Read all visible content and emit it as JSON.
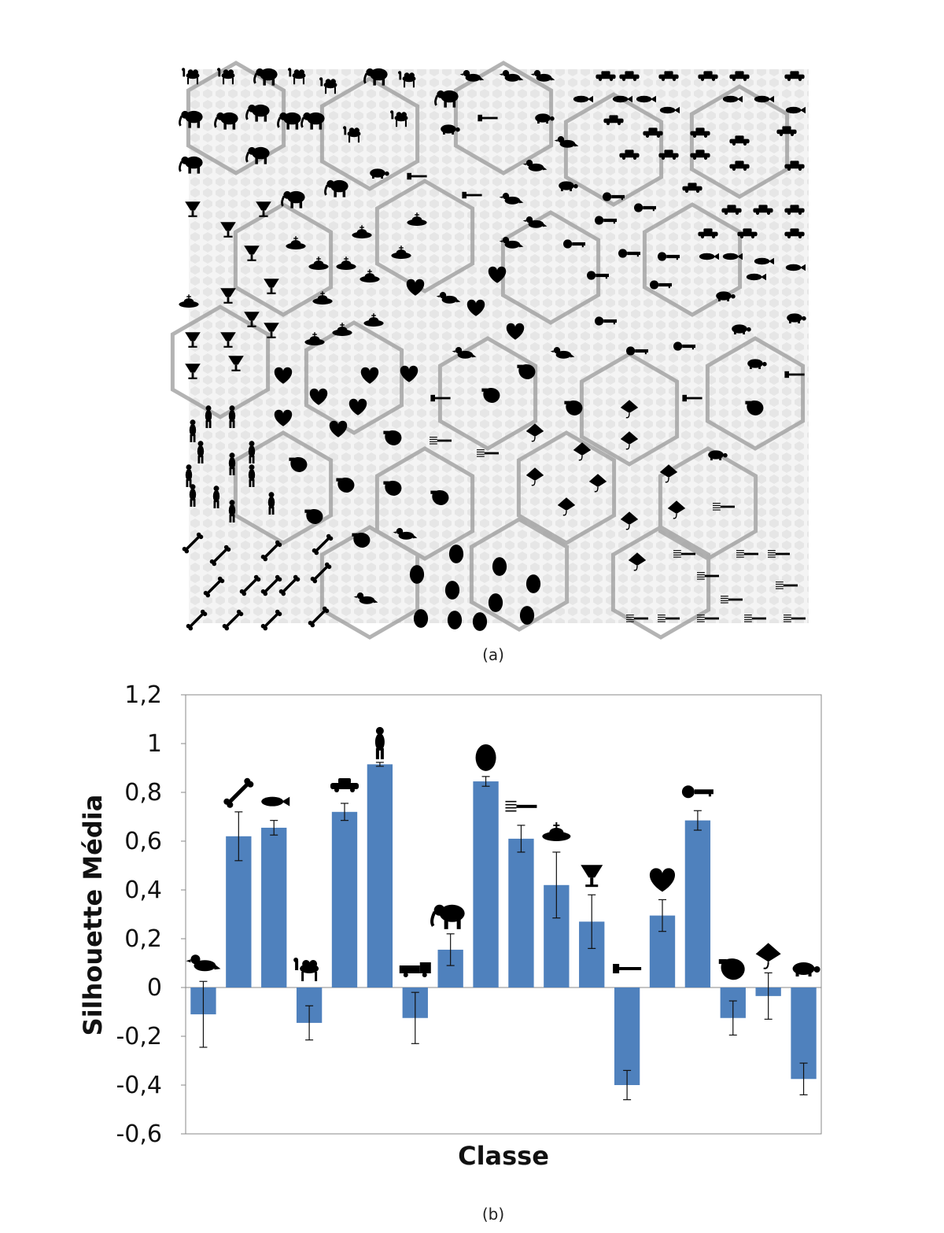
{
  "panel_a": {
    "caption": "(a)"
  },
  "panel_b": {
    "caption": "(b)"
  },
  "chart_data": {
    "type": "bar",
    "title": "",
    "xlabel": "Classe",
    "ylabel": "Silhouette Média",
    "ylim": [
      -0.6,
      1.2
    ],
    "yticks": [
      1.2,
      1,
      0.8,
      0.6,
      0.4,
      0.2,
      0,
      -0.2,
      -0.4,
      -0.6
    ],
    "ytick_labels": [
      "1,2",
      "1",
      "0,8",
      "0,6",
      "0,4",
      "0,2",
      "0",
      "-0,2",
      "-0,4",
      "-0,6"
    ],
    "bar_color": "#4f81bd",
    "categories": [
      "bird-icon",
      "bone-icon",
      "fish-icon",
      "camel-icon",
      "car-icon",
      "child-icon",
      "truck-icon",
      "elephant-icon",
      "face-icon",
      "fork-icon",
      "saucer-icon",
      "glass-icon",
      "hammer-icon",
      "heart-icon",
      "key-icon",
      "ray-icon-alt",
      "stingray-icon",
      "turtle-icon"
    ],
    "values": [
      -0.11,
      0.62,
      0.655,
      -0.145,
      0.72,
      0.915,
      -0.125,
      0.155,
      0.845,
      0.61,
      0.42,
      0.27,
      -0.4,
      0.295,
      0.685,
      -0.125,
      -0.035,
      -0.375
    ],
    "errors": [
      0.135,
      0.1,
      0.03,
      0.07,
      0.035,
      0.008,
      0.105,
      0.065,
      0.02,
      0.055,
      0.135,
      0.11,
      0.06,
      0.065,
      0.04,
      0.07,
      0.095,
      0.065
    ],
    "grid": false
  }
}
